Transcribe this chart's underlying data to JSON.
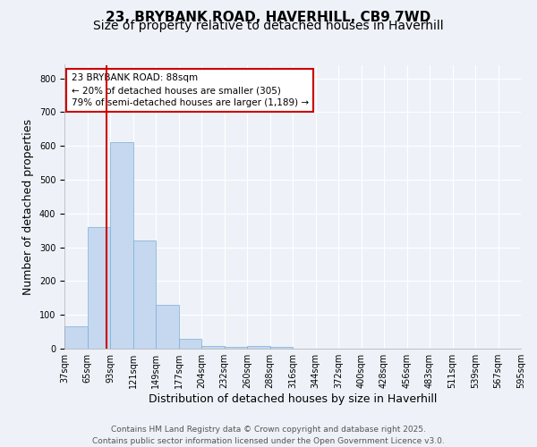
{
  "title1": "23, BRYBANK ROAD, HAVERHILL, CB9 7WD",
  "title2": "Size of property relative to detached houses in Haverhill",
  "xlabel": "Distribution of detached houses by size in Haverhill",
  "ylabel": "Number of detached properties",
  "bar_values": [
    65,
    360,
    610,
    320,
    130,
    28,
    8,
    5,
    8,
    5,
    0,
    0,
    0,
    0,
    0,
    0,
    0,
    0,
    0,
    0
  ],
  "bin_labels": [
    "37sqm",
    "65sqm",
    "93sqm",
    "121sqm",
    "149sqm",
    "177sqm",
    "204sqm",
    "232sqm",
    "260sqm",
    "288sqm",
    "316sqm",
    "344sqm",
    "372sqm",
    "400sqm",
    "428sqm",
    "456sqm",
    "483sqm",
    "511sqm",
    "539sqm",
    "567sqm",
    "595sqm"
  ],
  "bar_color": "#c5d8f0",
  "bar_edge_color": "#7aadd4",
  "vline_x": 1.84,
  "vline_color": "#cc0000",
  "annotation_text": "23 BRYBANK ROAD: 88sqm\n← 20% of detached houses are smaller (305)\n79% of semi-detached houses are larger (1,189) →",
  "annotation_box_color": "#ffffff",
  "annotation_box_edge": "#cc0000",
  "ylim": [
    0,
    840
  ],
  "yticks": [
    0,
    100,
    200,
    300,
    400,
    500,
    600,
    700,
    800
  ],
  "footer1": "Contains HM Land Registry data © Crown copyright and database right 2025.",
  "footer2": "Contains public sector information licensed under the Open Government Licence v3.0.",
  "bg_color": "#eef2f8",
  "grid_color": "#ffffff",
  "title1_fontsize": 11,
  "title2_fontsize": 10,
  "axis_fontsize": 9,
  "tick_fontsize": 7,
  "annot_fontsize": 7.5,
  "footer_fontsize": 6.5
}
